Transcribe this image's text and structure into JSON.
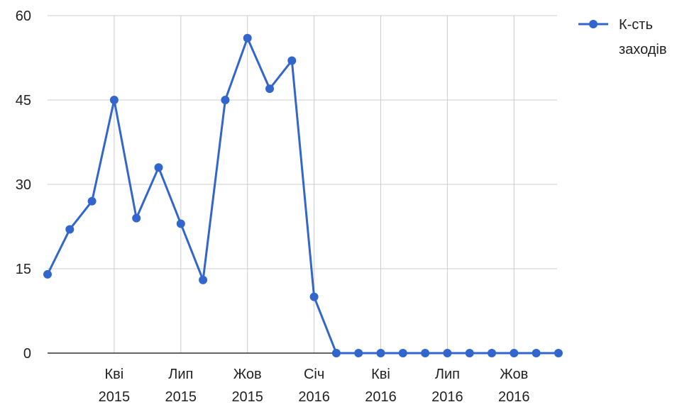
{
  "chart_data": {
    "type": "line",
    "title": "",
    "xlabel": "",
    "ylabel": "",
    "ylim": [
      0,
      60
    ],
    "y_ticks": [
      "0",
      "15",
      "30",
      "45",
      "60"
    ],
    "x_tick_labels": [
      {
        "month": "Кві",
        "year": "2015"
      },
      {
        "month": "Лип",
        "year": "2015"
      },
      {
        "month": "Жов",
        "year": "2015"
      },
      {
        "month": "Січ",
        "year": "2016"
      },
      {
        "month": "Кві",
        "year": "2016"
      },
      {
        "month": "Лип",
        "year": "2016"
      },
      {
        "month": "Жов",
        "year": "2016"
      }
    ],
    "grid": true,
    "legend_position": "top-right",
    "color": "#3366cc",
    "x": [
      "2015-01",
      "2015-02",
      "2015-03",
      "2015-04",
      "2015-05",
      "2015-06",
      "2015-07",
      "2015-08",
      "2015-09",
      "2015-10",
      "2015-11",
      "2015-12",
      "2016-01",
      "2016-02",
      "2016-03",
      "2016-04",
      "2016-05",
      "2016-06",
      "2016-07",
      "2016-08",
      "2016-09",
      "2016-10",
      "2016-11",
      "2016-12"
    ],
    "series": [
      {
        "name_lines": [
          "К-сть",
          "заходів"
        ],
        "values": [
          14,
          22,
          27,
          45,
          24,
          33,
          23,
          13,
          45,
          56,
          47,
          52,
          10,
          0,
          0,
          0,
          0,
          0,
          0,
          0,
          0,
          0,
          0,
          0
        ]
      }
    ]
  }
}
